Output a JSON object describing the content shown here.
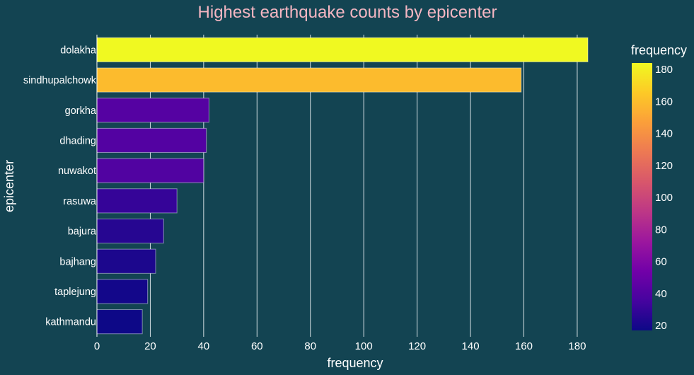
{
  "chart_data": {
    "type": "bar",
    "orientation": "horizontal",
    "title": "Highest earthquake counts by epicenter",
    "xlabel": "frequency",
    "ylabel": "epicenter",
    "categories": [
      "dolakha",
      "sindhupalchowk",
      "gorkha",
      "dhading",
      "nuwakot",
      "rasuwa",
      "bajura",
      "bajhang",
      "taplejung",
      "kathmandu"
    ],
    "values": [
      184,
      159,
      42,
      41,
      40,
      30,
      25,
      22,
      19,
      17
    ],
    "xlim": [
      0,
      184
    ],
    "xticks": [
      0,
      20,
      40,
      60,
      80,
      100,
      120,
      140,
      160,
      180
    ],
    "grid": "vertical",
    "colorbar": {
      "title": "frequency",
      "colorscale": "plasma",
      "range": [
        17,
        184
      ],
      "ticks": [
        20,
        40,
        60,
        80,
        100,
        120,
        140,
        160,
        180
      ]
    },
    "colors": {
      "background": "#134452",
      "title": "#f4b6c2",
      "text": "#ffffff",
      "grid": "#d8e2e6"
    }
  }
}
